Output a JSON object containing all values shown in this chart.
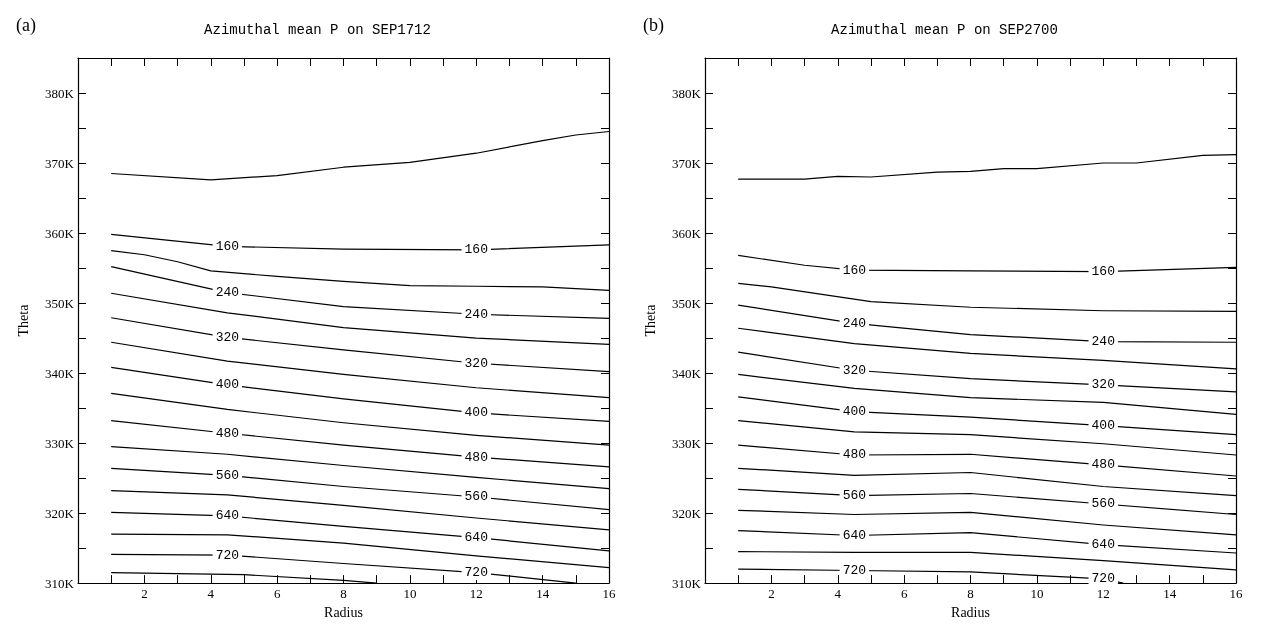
{
  "chart_data": [
    {
      "type": "line",
      "title": "Azimuthal mean P on SEP1712",
      "xlabel": "Radius",
      "ylabel": "Theta",
      "annotations": [
        "(a)"
      ],
      "xlim": [
        0,
        16
      ],
      "xticks": [
        {
          "value": 1,
          "label": null
        },
        2,
        {
          "value": 3,
          "label": null
        },
        4,
        {
          "value": 5,
          "label": null
        },
        6,
        {
          "value": 7,
          "label": null
        },
        8,
        {
          "value": 9,
          "label": null
        },
        10,
        {
          "value": 11,
          "label": null
        },
        12,
        {
          "value": 13,
          "label": null
        },
        14,
        {
          "value": 15,
          "label": null
        },
        16
      ],
      "ylim": [
        310,
        385
      ],
      "yticks": [
        {
          "value": 310,
          "label": "310K"
        },
        {
          "value": 315,
          "label": null
        },
        {
          "value": 320,
          "label": "320K"
        },
        {
          "value": 325,
          "label": null
        },
        {
          "value": 330,
          "label": "330K"
        },
        {
          "value": 335,
          "label": null
        },
        {
          "value": 340,
          "label": "340K"
        },
        {
          "value": 345,
          "label": null
        },
        {
          "value": 350,
          "label": "350K"
        },
        {
          "value": 355,
          "label": null
        },
        {
          "value": 360,
          "label": "360K"
        },
        {
          "value": 365,
          "label": null
        },
        {
          "value": 370,
          "label": "370K"
        },
        {
          "value": 375,
          "label": null
        },
        {
          "value": 380,
          "label": "380K"
        },
        {
          "value": 385,
          "label": null
        }
      ],
      "series": [
        {
          "color": "#000000",
          "x": [
            1,
            4,
            6,
            8,
            10,
            12,
            14,
            15,
            16
          ],
          "values": [
            368.5,
            367.6,
            368.2,
            369.4,
            370.1,
            371.4,
            373.2,
            374.0,
            374.5
          ]
        },
        {
          "name": "160",
          "color": "#000000",
          "x": [
            1,
            4.5,
            8,
            12,
            16
          ],
          "values": [
            359.8,
            358.1,
            357.7,
            357.6,
            358.3
          ]
        },
        {
          "color": "#000000",
          "x": [
            1,
            2,
            3,
            4,
            6,
            8,
            10,
            12,
            14,
            16
          ],
          "values": [
            357.5,
            356.9,
            355.9,
            354.6,
            353.8,
            353.1,
            352.5,
            352.4,
            352.3,
            351.8
          ]
        },
        {
          "name": "240",
          "color": "#000000",
          "x": [
            1,
            4.5,
            8,
            12,
            16
          ],
          "values": [
            355.2,
            351.5,
            349.5,
            348.4,
            347.8
          ]
        },
        {
          "color": "#000000",
          "x": [
            1,
            4.5,
            8,
            12,
            16
          ],
          "values": [
            351.4,
            348.6,
            346.5,
            345.0,
            344.1
          ]
        },
        {
          "name": "320",
          "color": "#000000",
          "x": [
            1,
            4.5,
            8,
            12,
            16
          ],
          "values": [
            347.9,
            345.1,
            343.3,
            341.4,
            340.2
          ]
        },
        {
          "color": "#000000",
          "x": [
            1,
            4.5,
            8,
            12,
            16
          ],
          "values": [
            344.4,
            341.7,
            339.8,
            337.9,
            336.5
          ]
        },
        {
          "name": "400",
          "color": "#000000",
          "x": [
            1,
            4.5,
            8,
            12,
            16
          ],
          "values": [
            340.8,
            338.3,
            336.3,
            334.3,
            333.1
          ]
        },
        {
          "color": "#000000",
          "x": [
            1,
            4.5,
            8,
            12,
            16
          ],
          "values": [
            337.1,
            334.8,
            332.9,
            331.1,
            329.7
          ]
        },
        {
          "name": "480",
          "color": "#000000",
          "x": [
            1,
            4.5,
            8,
            12,
            16
          ],
          "values": [
            333.2,
            331.4,
            329.7,
            328.0,
            326.6
          ]
        },
        {
          "color": "#000000",
          "x": [
            1,
            4.5,
            8,
            12,
            16
          ],
          "values": [
            329.5,
            328.4,
            326.8,
            325.1,
            323.5
          ]
        },
        {
          "name": "560",
          "color": "#000000",
          "x": [
            1,
            4.5,
            8,
            12,
            16
          ],
          "values": [
            326.4,
            325.4,
            323.8,
            322.3,
            320.5
          ]
        },
        {
          "color": "#000000",
          "x": [
            1,
            4.5,
            8,
            12,
            16
          ],
          "values": [
            323.2,
            322.6,
            321.1,
            319.3,
            317.6
          ]
        },
        {
          "name": "640",
          "color": "#000000",
          "x": [
            1,
            4.5,
            8,
            12,
            16
          ],
          "values": [
            320.1,
            319.6,
            318.1,
            316.5,
            314.6
          ]
        },
        {
          "color": "#000000",
          "x": [
            1,
            4.5,
            8,
            12,
            16
          ],
          "values": [
            317.0,
            316.9,
            315.7,
            313.9,
            312.2
          ]
        },
        {
          "name": "720",
          "color": "#000000",
          "x": [
            1,
            4.5,
            8,
            12,
            15
          ],
          "values": [
            314.1,
            314.0,
            312.8,
            311.5,
            310.0
          ]
        },
        {
          "color": "#000000",
          "x": [
            1,
            5,
            8,
            9
          ],
          "values": [
            311.5,
            311.2,
            310.4,
            310.0
          ]
        }
      ]
    },
    {
      "type": "line",
      "title": "Azimuthal mean P on SEP2700",
      "xlabel": "Radius",
      "ylabel": "Theta",
      "annotations": [
        "(b)"
      ],
      "xlim": [
        0,
        16
      ],
      "xticks": [
        {
          "value": 1,
          "label": null
        },
        2,
        {
          "value": 3,
          "label": null
        },
        4,
        {
          "value": 5,
          "label": null
        },
        6,
        {
          "value": 7,
          "label": null
        },
        8,
        {
          "value": 9,
          "label": null
        },
        10,
        {
          "value": 11,
          "label": null
        },
        12,
        {
          "value": 13,
          "label": null
        },
        14,
        {
          "value": 15,
          "label": null
        },
        16
      ],
      "ylim": [
        310,
        385
      ],
      "yticks": [
        {
          "value": 310,
          "label": "310K"
        },
        {
          "value": 315,
          "label": null
        },
        {
          "value": 320,
          "label": "320K"
        },
        {
          "value": 325,
          "label": null
        },
        {
          "value": 330,
          "label": "330K"
        },
        {
          "value": 335,
          "label": null
        },
        {
          "value": 340,
          "label": "340K"
        },
        {
          "value": 345,
          "label": null
        },
        {
          "value": 350,
          "label": "350K"
        },
        {
          "value": 355,
          "label": null
        },
        {
          "value": 360,
          "label": "360K"
        },
        {
          "value": 365,
          "label": null
        },
        {
          "value": 370,
          "label": "370K"
        },
        {
          "value": 375,
          "label": null
        },
        {
          "value": 380,
          "label": "380K"
        },
        {
          "value": 385,
          "label": null
        }
      ],
      "series": [
        {
          "color": "#000000",
          "x": [
            1,
            3,
            4,
            5,
            7,
            8,
            9,
            10,
            12,
            13,
            15,
            16
          ],
          "values": [
            367.7,
            367.7,
            368.1,
            368.0,
            368.7,
            368.8,
            369.2,
            369.2,
            370.0,
            370.0,
            371.1,
            371.2
          ]
        },
        {
          "name": "160",
          "color": "#000000",
          "x": [
            1,
            3,
            4.5,
            8,
            12,
            16
          ],
          "values": [
            356.8,
            355.4,
            354.7,
            354.6,
            354.5,
            355.1
          ]
        },
        {
          "color": "#000000",
          "x": [
            1,
            2,
            5,
            8,
            12,
            16
          ],
          "values": [
            352.8,
            352.3,
            350.2,
            349.4,
            348.9,
            348.8
          ]
        },
        {
          "name": "240",
          "color": "#000000",
          "x": [
            1,
            4.5,
            8,
            12,
            16
          ],
          "values": [
            349.7,
            347.1,
            345.5,
            344.5,
            344.4
          ]
        },
        {
          "color": "#000000",
          "x": [
            1,
            4.5,
            8,
            12,
            16
          ],
          "values": [
            346.4,
            344.2,
            342.8,
            341.8,
            340.6
          ]
        },
        {
          "name": "320",
          "color": "#000000",
          "x": [
            1,
            4.5,
            8,
            12,
            16
          ],
          "values": [
            343.0,
            340.4,
            339.2,
            338.3,
            337.3
          ]
        },
        {
          "color": "#000000",
          "x": [
            1,
            4.5,
            8,
            12,
            16
          ],
          "values": [
            339.8,
            337.8,
            336.5,
            335.8,
            334.1
          ]
        },
        {
          "name": "400",
          "color": "#000000",
          "x": [
            1,
            4.5,
            8,
            12,
            16
          ],
          "values": [
            336.6,
            334.5,
            333.7,
            332.5,
            331.2
          ]
        },
        {
          "color": "#000000",
          "x": [
            1,
            4.5,
            8,
            12,
            16
          ],
          "values": [
            333.2,
            331.6,
            331.2,
            329.9,
            328.3
          ]
        },
        {
          "name": "480",
          "color": "#000000",
          "x": [
            1,
            4.5,
            8,
            12,
            16
          ],
          "values": [
            329.7,
            328.3,
            328.4,
            326.9,
            325.3
          ]
        },
        {
          "color": "#000000",
          "x": [
            1,
            4.5,
            8,
            12,
            16
          ],
          "values": [
            326.4,
            325.4,
            325.8,
            323.8,
            322.5
          ]
        },
        {
          "name": "560",
          "color": "#000000",
          "x": [
            1,
            4.5,
            8,
            12,
            16
          ],
          "values": [
            323.4,
            322.5,
            322.8,
            321.3,
            319.8
          ]
        },
        {
          "color": "#000000",
          "x": [
            1,
            4.5,
            8,
            12,
            16
          ],
          "values": [
            320.4,
            319.8,
            320.1,
            318.3,
            316.9
          ]
        },
        {
          "name": "640",
          "color": "#000000",
          "x": [
            1,
            4.5,
            8,
            12,
            16
          ],
          "values": [
            317.5,
            316.8,
            317.2,
            315.5,
            314.3
          ]
        },
        {
          "color": "#000000",
          "x": [
            1,
            4.5,
            8,
            12,
            16
          ],
          "values": [
            314.5,
            314.4,
            314.4,
            313.2,
            311.9
          ]
        },
        {
          "name": "720",
          "color": "#000000",
          "x": [
            1,
            4.5,
            8,
            12,
            12.6
          ],
          "values": [
            312.0,
            311.8,
            311.6,
            310.6,
            310.0
          ]
        }
      ]
    }
  ]
}
